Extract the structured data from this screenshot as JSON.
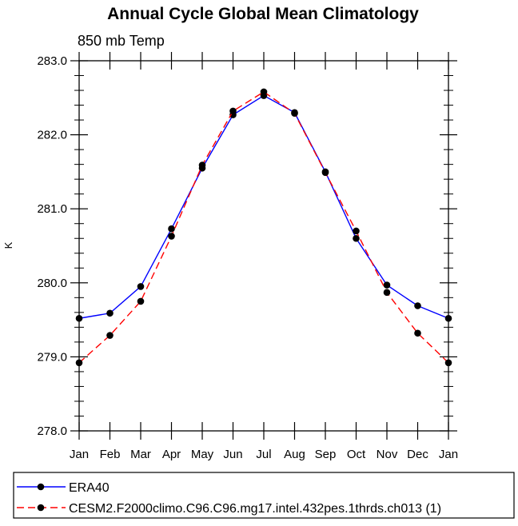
{
  "chart_data": {
    "type": "line",
    "title": "Annual Cycle Global Mean Climatology",
    "subtitle": "850 mb Temp",
    "xlabel": "",
    "ylabel": "K",
    "categories": [
      "Jan",
      "Feb",
      "Mar",
      "Apr",
      "May",
      "Jun",
      "Jul",
      "Aug",
      "Sep",
      "Oct",
      "Nov",
      "Dec",
      "Jan"
    ],
    "ylim": [
      278.0,
      283.0
    ],
    "yticks": [
      "278.0",
      "279.0",
      "280.0",
      "281.0",
      "282.0",
      "283.0"
    ],
    "grid": false,
    "legend_position": "bottom",
    "series": [
      {
        "name": "ERA40",
        "color": "#0000ff",
        "dash": "solid",
        "marker": "filled-circle",
        "values": [
          279.52,
          279.59,
          279.95,
          280.73,
          281.55,
          282.27,
          282.53,
          282.3,
          281.5,
          280.6,
          279.97,
          279.69,
          279.52
        ]
      },
      {
        "name": "CESM2.F2000climo.C96.C96.mg17.intel.432pes.1thrds.ch013 (1)",
        "color": "#ff0000",
        "dash": "dashed",
        "marker": "filled-circle",
        "values": [
          278.92,
          279.29,
          279.75,
          280.63,
          281.59,
          282.32,
          282.58,
          282.29,
          281.49,
          280.7,
          279.87,
          279.32,
          278.92
        ]
      }
    ]
  }
}
